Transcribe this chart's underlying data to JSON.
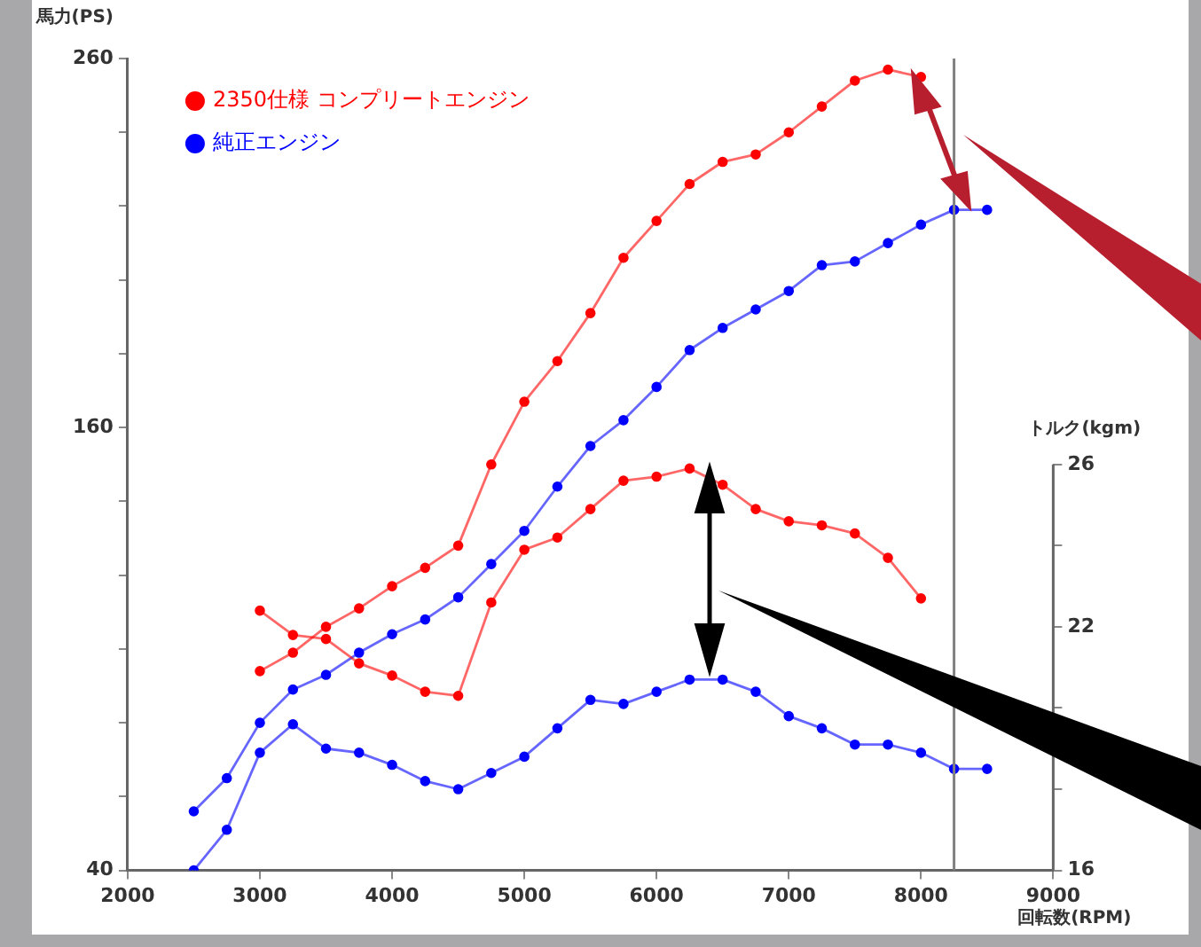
{
  "chart_data": {
    "type": "line",
    "xlabel": "回転数(RPM)",
    "ylabel": "馬力(PS)",
    "y2label": "トルク(kgm)",
    "xlim": [
      2000,
      9000
    ],
    "xticks": [
      2000,
      3000,
      4000,
      5000,
      6000,
      7000,
      8000,
      9000
    ],
    "ylim": [
      40,
      260
    ],
    "yticks": [
      40,
      {
        "value": 60,
        "label": null
      },
      {
        "value": 80,
        "label": null
      },
      {
        "value": 100,
        "label": null
      },
      {
        "value": 120,
        "label": null
      },
      {
        "value": 140,
        "label": null
      },
      160,
      {
        "value": 180,
        "label": null
      },
      {
        "value": 200,
        "label": null
      },
      {
        "value": 220,
        "label": null
      },
      {
        "value": 240,
        "label": null
      },
      260
    ],
    "y2lim": [
      16,
      36
    ],
    "y2ticks": [
      16,
      {
        "value": 18,
        "label": null
      },
      {
        "value": 20,
        "label": null
      },
      22,
      {
        "value": 24,
        "label": null
      },
      26
    ],
    "grid": false,
    "legend": "top left",
    "marker": "circle",
    "line_style": "solid",
    "ref_lines": [
      {
        "axis": "x",
        "value": 8250,
        "label": null,
        "color": "#808080"
      }
    ],
    "series": [
      {
        "name": "2350仕様 コンプリートエンジン",
        "color": "#ff0000",
        "x": [
          3000,
          3250,
          3500,
          3750,
          4000,
          4250,
          4500,
          4750,
          5000,
          5250,
          5500,
          5750,
          6000,
          6250,
          6500,
          6750,
          7000,
          7250,
          7500,
          7750,
          8000
        ],
        "values": [
          94,
          99,
          106,
          111,
          117,
          122,
          128,
          150,
          167,
          178,
          191,
          206,
          216,
          226,
          232,
          234,
          240,
          247,
          254,
          257,
          255
        ]
      },
      {
        "color": "#ff0000",
        "axis": "y2",
        "x": [
          3000,
          3250,
          3500,
          3750,
          4000,
          4250,
          4500,
          4750,
          5000,
          5250,
          5500,
          5750,
          6000,
          6250,
          6500,
          6750,
          7000,
          7250,
          7500,
          7750,
          8000
        ],
        "values": [
          22.4,
          21.8,
          21.7,
          21.1,
          20.8,
          20.4,
          20.3,
          22.6,
          23.9,
          24.2,
          24.9,
          25.6,
          25.7,
          25.9,
          25.5,
          24.9,
          24.6,
          24.5,
          24.3,
          23.7,
          22.7
        ]
      },
      {
        "name": "純正エンジン",
        "color": "#0000ff",
        "x": [
          2500,
          2750,
          3000,
          3250,
          3500,
          3750,
          4000,
          4250,
          4500,
          4750,
          5000,
          5250,
          5500,
          5750,
          6000,
          6250,
          6500,
          6750,
          7000,
          7250,
          7500,
          7750,
          8000,
          8250,
          8500
        ],
        "values": [
          56,
          65,
          80,
          89,
          93,
          99,
          104,
          108,
          114,
          123,
          132,
          144,
          155,
          162,
          171,
          181,
          187,
          192,
          197,
          204,
          205,
          210,
          215,
          219,
          219
        ]
      },
      {
        "color": "#0000ff",
        "axis": "y2",
        "x": [
          2500,
          2750,
          3000,
          3250,
          3500,
          3750,
          4000,
          4250,
          4500,
          4750,
          5000,
          5250,
          5500,
          5750,
          6000,
          6250,
          6500,
          6750,
          7000,
          7250,
          7500,
          7750,
          8000,
          8250,
          8500
        ],
        "values": [
          16.0,
          17.0,
          18.9,
          19.6,
          19.0,
          18.9,
          18.6,
          18.2,
          18.0,
          18.4,
          18.8,
          19.5,
          20.2,
          20.1,
          20.4,
          20.7,
          20.7,
          20.4,
          19.8,
          19.5,
          19.1,
          19.1,
          18.9,
          18.5,
          18.5
        ]
      }
    ]
  }
}
